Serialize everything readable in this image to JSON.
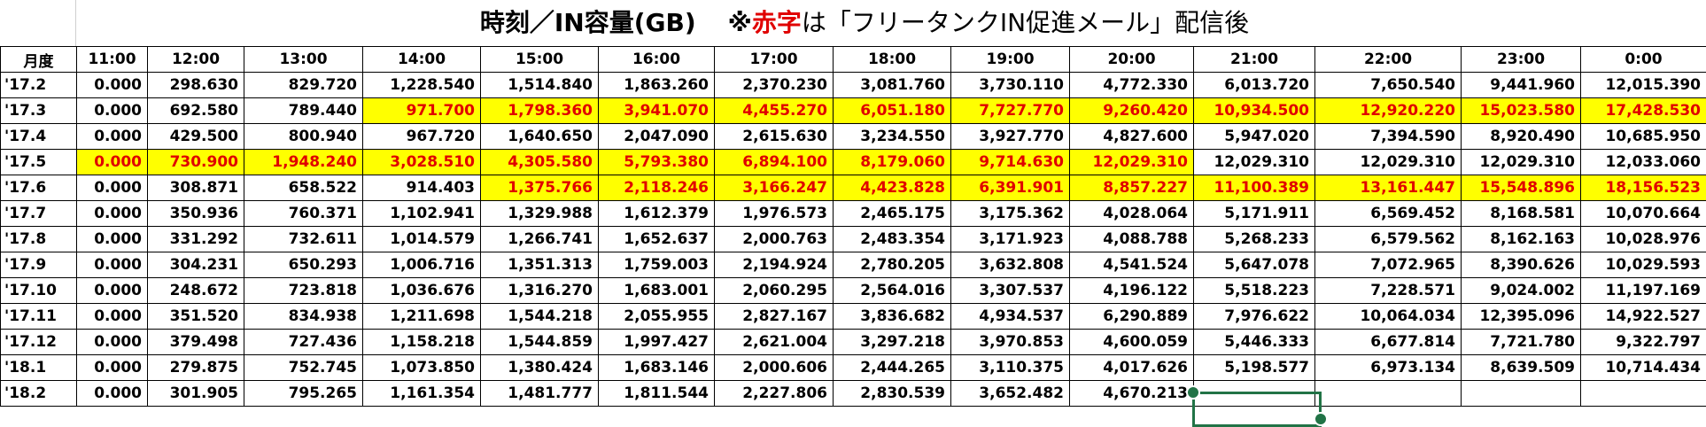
{
  "title": {
    "main": "時刻／IN容量(GB)",
    "prefix": "※",
    "red": "赤字",
    "rest": "は「フリータンクIN促進メール」配信後"
  },
  "table": {
    "header": [
      "月度",
      "11:00",
      "12:00",
      "13:00",
      "14:00",
      "15:00",
      "16:00",
      "17:00",
      "18:00",
      "19:00",
      "20:00",
      "21:00",
      "22:00",
      "23:00",
      "0:00"
    ],
    "rows": [
      [
        "'17.2",
        "0.000",
        "298.630",
        "829.720",
        "1,228.540",
        "1,514.840",
        "1,863.260",
        "2,370.230",
        "3,081.760",
        "3,730.110",
        "4,772.330",
        "6,013.720",
        "7,650.540",
        "9,441.960",
        "12,015.390"
      ],
      [
        "'17.3",
        "0.000",
        "692.580",
        "789.440",
        "971.700",
        "1,798.360",
        "3,941.070",
        "4,455.270",
        "6,051.180",
        "7,727.770",
        "9,260.420",
        "10,934.500",
        "12,920.220",
        "15,023.580",
        "17,428.530"
      ],
      [
        "'17.4",
        "0.000",
        "429.500",
        "800.940",
        "967.720",
        "1,640.650",
        "2,047.090",
        "2,615.630",
        "3,234.550",
        "3,927.770",
        "4,827.600",
        "5,947.020",
        "7,394.590",
        "8,920.490",
        "10,685.950"
      ],
      [
        "'17.5",
        "0.000",
        "730.900",
        "1,948.240",
        "3,028.510",
        "4,305.580",
        "5,793.380",
        "6,894.100",
        "8,179.060",
        "9,714.630",
        "12,029.310",
        "12,029.310",
        "12,029.310",
        "12,029.310",
        "12,033.060"
      ],
      [
        "'17.6",
        "0.000",
        "308.871",
        "658.522",
        "914.403",
        "1,375.766",
        "2,118.246",
        "3,166.247",
        "4,423.828",
        "6,391.901",
        "8,857.227",
        "11,100.389",
        "13,161.447",
        "15,548.896",
        "18,156.523"
      ],
      [
        "'17.7",
        "0.000",
        "350.936",
        "760.371",
        "1,102.941",
        "1,329.988",
        "1,612.379",
        "1,976.573",
        "2,465.175",
        "3,175.362",
        "4,028.064",
        "5,171.911",
        "6,569.452",
        "8,168.581",
        "10,070.664"
      ],
      [
        "'17.8",
        "0.000",
        "331.292",
        "732.611",
        "1,014.579",
        "1,266.741",
        "1,652.637",
        "2,000.763",
        "2,483.354",
        "3,171.923",
        "4,088.788",
        "5,268.233",
        "6,579.562",
        "8,162.163",
        "10,028.976"
      ],
      [
        "'17.9",
        "0.000",
        "304.231",
        "650.293",
        "1,006.716",
        "1,351.313",
        "1,759.003",
        "2,194.924",
        "2,780.205",
        "3,632.808",
        "4,541.524",
        "5,647.078",
        "7,072.965",
        "8,390.626",
        "10,029.593"
      ],
      [
        "'17.10",
        "0.000",
        "248.672",
        "723.818",
        "1,036.676",
        "1,316.270",
        "1,683.001",
        "2,060.295",
        "2,564.016",
        "3,307.537",
        "4,196.122",
        "5,518.223",
        "7,228.571",
        "9,024.002",
        "11,197.169"
      ],
      [
        "'17.11",
        "0.000",
        "351.520",
        "834.938",
        "1,211.698",
        "1,544.218",
        "2,055.955",
        "2,827.167",
        "3,836.682",
        "4,934.537",
        "6,290.889",
        "7,976.622",
        "10,064.034",
        "12,395.096",
        "14,922.527"
      ],
      [
        "'17.12",
        "0.000",
        "379.498",
        "727.436",
        "1,158.218",
        "1,544.859",
        "1,997.427",
        "2,621.004",
        "3,297.218",
        "3,970.853",
        "4,600.059",
        "5,446.333",
        "6,677.814",
        "7,721.780",
        "9,322.797"
      ],
      [
        "'18.1",
        "0.000",
        "279.875",
        "752.745",
        "1,073.850",
        "1,380.424",
        "1,683.146",
        "2,000.606",
        "2,444.265",
        "3,110.375",
        "4,017.626",
        "5,198.577",
        "6,973.134",
        "8,639.509",
        "10,714.434"
      ],
      [
        "'18.2",
        "0.000",
        "301.905",
        "795.265",
        "1,161.354",
        "1,481.777",
        "1,811.544",
        "2,227.806",
        "2,830.539",
        "3,652.482",
        "4,670.213"
      ]
    ]
  }
}
